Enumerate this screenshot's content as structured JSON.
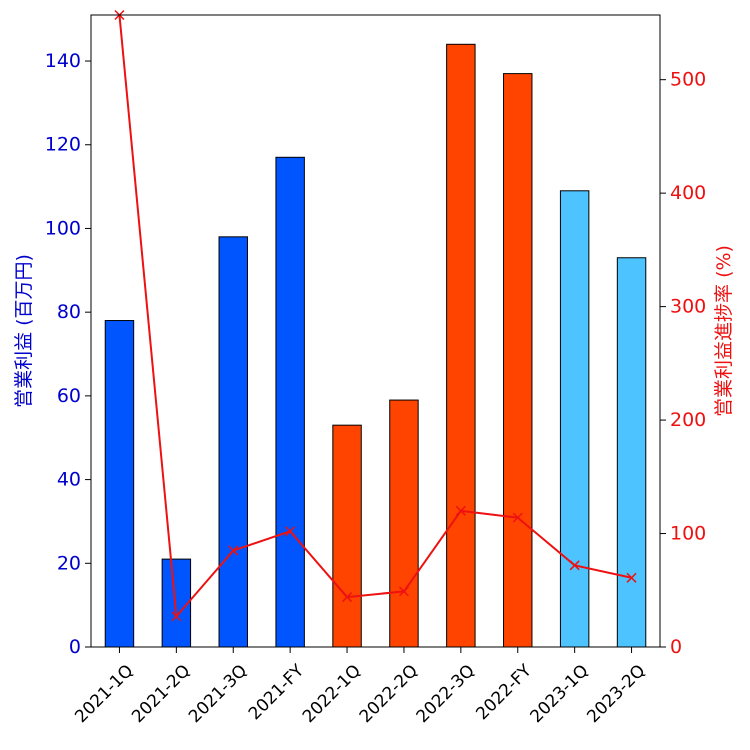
{
  "chart_data": {
    "type": "bar+line",
    "categories": [
      "2021-1Q",
      "2021-2Q",
      "2021-3Q",
      "2021-FY",
      "2022-1Q",
      "2022-2Q",
      "2022-3Q",
      "2022-FY",
      "2023-1Q",
      "2023-2Q"
    ],
    "bar_series": {
      "values": [
        78,
        21,
        98,
        117,
        53,
        59,
        144,
        137,
        109,
        93
      ],
      "colors": [
        "#0055ff",
        "#0055ff",
        "#0055ff",
        "#0055ff",
        "#ff4400",
        "#ff4400",
        "#ff4400",
        "#ff4400",
        "#4dc3ff",
        "#4dc3ff"
      ],
      "edge_color": "#000000"
    },
    "line_series": {
      "values": [
        557,
        27,
        85,
        102,
        44,
        49,
        120,
        114,
        72,
        61
      ],
      "color": "#ee1111",
      "marker": "x"
    },
    "left_axis": {
      "label": "営業利益 (百万円)",
      "ylim": [
        0,
        151
      ],
      "ticks": [
        0,
        20,
        40,
        60,
        80,
        100,
        120,
        140
      ],
      "color": "#0000cc"
    },
    "right_axis": {
      "label": "営業利益進捗率 (%)",
      "ylim": [
        0,
        557
      ],
      "ticks": [
        0,
        100,
        200,
        300,
        400,
        500
      ],
      "color": "#ee1111"
    },
    "x_tick_rotation": -45,
    "grid": false
  }
}
